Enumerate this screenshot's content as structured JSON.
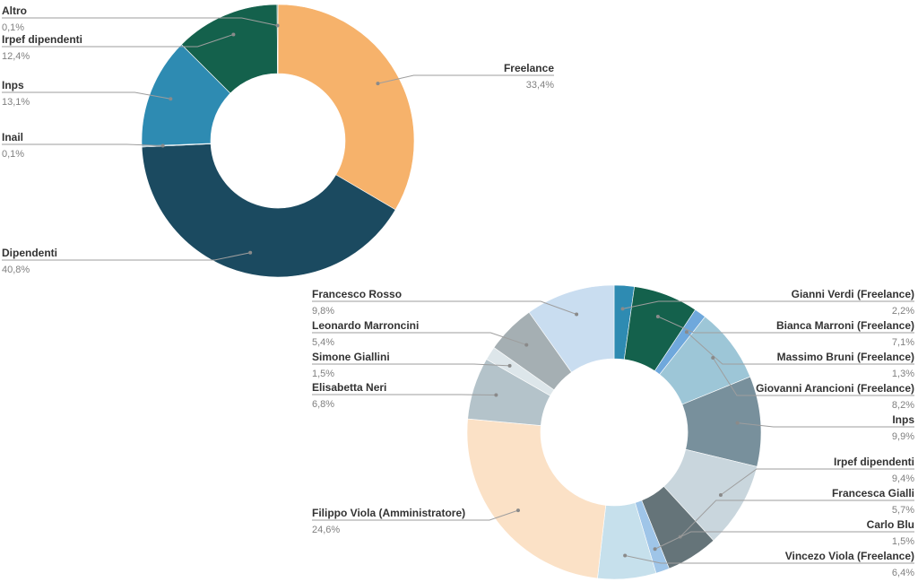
{
  "chart_data": [
    {
      "type": "pie",
      "donut": true,
      "slices": [
        {
          "name": "Freelance",
          "value": 33.4,
          "label": "33,4%",
          "color": "#F6B26B"
        },
        {
          "name": "Dipendenti",
          "value": 40.8,
          "label": "40,8%",
          "color": "#1B4A60"
        },
        {
          "name": "Inail",
          "value": 0.1,
          "label": "0,1%",
          "color": "#1E5B74"
        },
        {
          "name": "Inps",
          "value": 13.1,
          "label": "13,1%",
          "color": "#2E8BB2"
        },
        {
          "name": "Irpef dipendenti",
          "value": 12.4,
          "label": "12,4%",
          "color": "#14614C"
        },
        {
          "name": "Altro",
          "value": 0.1,
          "label": "0,1%",
          "color": "#0F5542"
        }
      ]
    },
    {
      "type": "pie",
      "donut": true,
      "slices": [
        {
          "name": "Gianni Verdi (Freelance)",
          "value": 2.2,
          "label": "2,2%",
          "color": "#2E8BB2"
        },
        {
          "name": "Bianca Marroni (Freelance)",
          "value": 7.1,
          "label": "7,1%",
          "color": "#14614C"
        },
        {
          "name": "Massimo Bruni (Freelance)",
          "value": 1.3,
          "label": "1,3%",
          "color": "#6FA8DC"
        },
        {
          "name": "Giovanni Arancioni (Freelance)",
          "value": 8.2,
          "label": "8,2%",
          "color": "#9DC6D7"
        },
        {
          "name": "Inps",
          "value": 9.9,
          "label": "9,9%",
          "color": "#78909C"
        },
        {
          "name": "Irpef dipendenti",
          "value": 9.4,
          "label": "9,4%",
          "color": "#C9D6DD"
        },
        {
          "name": "Francesca Gialli",
          "value": 5.7,
          "label": "5,7%",
          "color": "#657479"
        },
        {
          "name": "Carlo Blu",
          "value": 1.5,
          "label": "1,5%",
          "color": "#9FC5E8"
        },
        {
          "name": "Vincezo Viola (Freelance)",
          "value": 6.4,
          "label": "6,4%",
          "color": "#C6E0EC"
        },
        {
          "name": "Filippo Viola (Amministratore)",
          "value": 24.6,
          "label": "24,6%",
          "color": "#FBE1C6"
        },
        {
          "name": "Elisabetta Neri",
          "value": 6.8,
          "label": "6,8%",
          "color": "#B4C3CA"
        },
        {
          "name": "Simone Giallini",
          "value": 1.5,
          "label": "1,5%",
          "color": "#DDE6EA"
        },
        {
          "name": "Leonardo Marroncini",
          "value": 5.4,
          "label": "5,4%",
          "color": "#A5AFB3"
        },
        {
          "name": "Francesco Rosso",
          "value": 9.8,
          "label": "9,8%",
          "color": "#C9DDF0"
        }
      ]
    }
  ]
}
